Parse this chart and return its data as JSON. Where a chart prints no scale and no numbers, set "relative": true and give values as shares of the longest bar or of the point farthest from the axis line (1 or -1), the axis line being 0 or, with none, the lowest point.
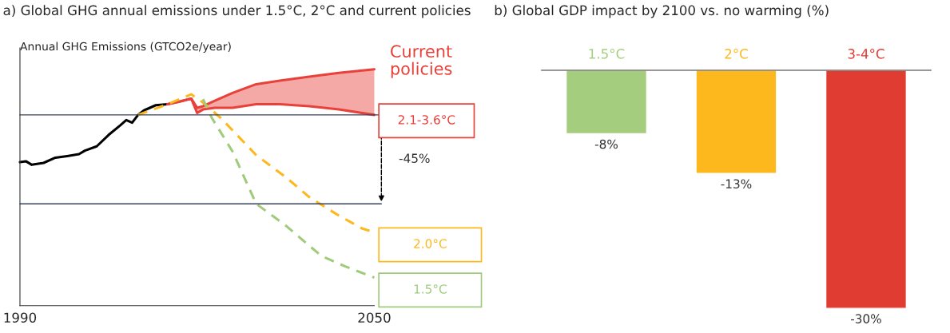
{
  "chart_data": [
    {
      "type": "line",
      "title": "a) Global GHG annual emissions under 1.5°C, 2°C and current policies",
      "ylabel": "Annual GHG Emissions (GTCO2e/year)",
      "relative": true,
      "xlim": [
        1990,
        2050
      ],
      "xticks": [
        1990,
        2050
      ],
      "tick_labels": "x",
      "series": [
        {
          "type": "line",
          "color": "#000000",
          "line_style": "solid",
          "x": [
            1990,
            1991,
            1992,
            1994,
            1996,
            1998,
            2000,
            2001,
            2003,
            2005,
            2007,
            2008,
            2009,
            2010,
            2011,
            2013,
            2015
          ],
          "values": [
            0.607,
            0.611,
            0.596,
            0.604,
            0.626,
            0.633,
            0.641,
            0.656,
            0.674,
            0.722,
            0.763,
            0.785,
            0.774,
            0.807,
            0.826,
            0.848,
            0.852
          ]
        },
        {
          "type": "line",
          "color": "#e8413a",
          "line_style": "solid",
          "x": [
            2015,
            2017,
            2019,
            2020,
            2021,
            2023,
            2026,
            2030,
            2034,
            2039,
            2044,
            2050
          ],
          "values": [
            0.852,
            0.863,
            0.876,
            0.815,
            0.83,
            0.837,
            0.837,
            0.852,
            0.852,
            0.844,
            0.83,
            0.807
          ]
        },
        {
          "type": "line",
          "name": "Current policies",
          "color": "#e8413a",
          "line_style": "solid",
          "x": [
            2015,
            2017,
            2019,
            2020,
            2021,
            2023,
            2026,
            2030,
            2034,
            2039,
            2044,
            2050
          ],
          "values": [
            0.852,
            0.863,
            0.876,
            0.837,
            0.844,
            0.867,
            0.9,
            0.937,
            0.952,
            0.969,
            0.985,
            1.0
          ],
          "lower": [
            0.852,
            0.863,
            0.876,
            0.815,
            0.83,
            0.837,
            0.837,
            0.852,
            0.852,
            0.844,
            0.83,
            0.807
          ],
          "upper": [
            0.852,
            0.863,
            0.876,
            0.837,
            0.844,
            0.867,
            0.9,
            0.937,
            0.952,
            0.969,
            0.985,
            1.0
          ]
        },
        {
          "type": "line",
          "name": "2.0°C",
          "color": "#fdb81e",
          "line_style": "dashed",
          "x": [
            2010,
            2015,
            2019,
            2021,
            2024,
            2030,
            2035,
            2039,
            2044,
            2048,
            2050
          ],
          "values": [
            0.807,
            0.852,
            0.894,
            0.859,
            0.794,
            0.637,
            0.544,
            0.459,
            0.381,
            0.326,
            0.311
          ]
        },
        {
          "type": "line",
          "name": "1.5°C",
          "color": "#9fcb7a",
          "line_style": "dashed",
          "x": [
            2021,
            2022.5,
            2026,
            2030,
            2035,
            2041,
            2045,
            2050
          ],
          "values": [
            0.874,
            0.794,
            0.652,
            0.431,
            0.339,
            0.211,
            0.167,
            0.119
          ]
        }
      ],
      "ref_lines": [
        {
          "axis": "y",
          "value": 0.807,
          "color": "#34405a"
        },
        {
          "axis": "y",
          "value": 0.431,
          "color": "#34405a"
        }
      ],
      "annotations": [
        {
          "text": "2.1-3.6°C",
          "x": 2050,
          "y": 0.807
        },
        "-45%"
      ]
    },
    {
      "type": "bar",
      "title": "b) Global GDP impact by 2100 vs. no warming (%)",
      "categories": [
        "1.5°C",
        "2°C",
        "3-4°C"
      ],
      "values": [
        -8,
        -13,
        -30
      ],
      "colors": [
        "#a5cd7e",
        "#fdb81e",
        "#e03c31"
      ],
      "value_labels": [
        "-8%",
        "-13%",
        "-30%"
      ]
    }
  ]
}
